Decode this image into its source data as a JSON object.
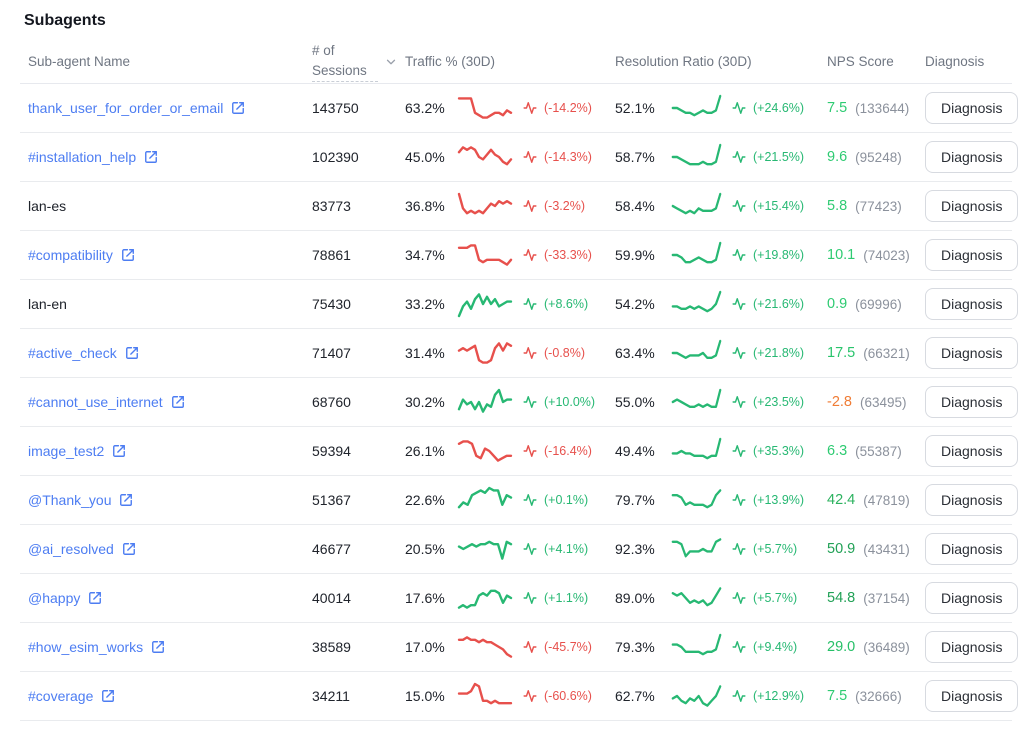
{
  "page": {
    "title": "Subagents"
  },
  "colors": {
    "red": "#e7504c",
    "green": "#27b873",
    "orange": "#f07c35",
    "link_blue": "#4d7df2"
  },
  "table": {
    "columns": [
      "Sub-agent Name",
      "# of Sessions",
      "Traffic % (30D)",
      "Resolution Ratio (30D)",
      "NPS Score",
      "Diagnosis"
    ],
    "diagnosis_label": "Diagnosis",
    "rows": [
      {
        "name": "thank_user_for_order_or_email",
        "is_link": true,
        "sessions": "143750",
        "traffic": {
          "value": "63.2%",
          "change": "(-14.2%)",
          "trend": "down",
          "spark": [
            9,
            9,
            9,
            9,
            3,
            2,
            1,
            1,
            2,
            3,
            3,
            2,
            4,
            3
          ]
        },
        "resolution": {
          "value": "52.1%",
          "change": "(+24.6%)",
          "trend": "up",
          "spark": [
            5,
            5,
            4,
            3,
            3,
            2,
            3,
            4,
            3,
            3,
            4,
            10
          ]
        },
        "nps": {
          "score": "7.5",
          "count": "(133644)",
          "color": "#2ecb72"
        }
      },
      {
        "name": "#installation_help",
        "is_link": true,
        "sessions": "102390",
        "traffic": {
          "value": "45.0%",
          "change": "(-14.3%)",
          "trend": "down",
          "spark": [
            7,
            9,
            8,
            9,
            8,
            5,
            4,
            6,
            8,
            6,
            5,
            3,
            2,
            4
          ]
        },
        "resolution": {
          "value": "58.7%",
          "change": "(+21.5%)",
          "trend": "up",
          "spark": [
            5,
            5,
            4,
            3,
            2,
            2,
            2,
            3,
            2,
            2,
            3,
            10
          ]
        },
        "nps": {
          "score": "9.6",
          "count": "(95248)",
          "color": "#2ecb72"
        }
      },
      {
        "name": "lan-es",
        "is_link": false,
        "sessions": "83773",
        "traffic": {
          "value": "36.8%",
          "change": "(-3.2%)",
          "trend": "down",
          "spark": [
            10,
            4,
            2,
            3,
            2,
            3,
            2,
            4,
            6,
            5,
            7,
            6,
            7,
            6
          ]
        },
        "resolution": {
          "value": "58.4%",
          "change": "(+15.4%)",
          "trend": "up",
          "spark": [
            5,
            4,
            3,
            2,
            3,
            2,
            4,
            3,
            3,
            3,
            4,
            10
          ]
        },
        "nps": {
          "score": "5.8",
          "count": "(77423)",
          "color": "#2ecb72"
        }
      },
      {
        "name": "#compatibility",
        "is_link": true,
        "sessions": "78861",
        "traffic": {
          "value": "34.7%",
          "change": "(-33.3%)",
          "trend": "down",
          "spark": [
            8,
            8,
            8,
            9,
            9,
            3,
            2,
            3,
            3,
            3,
            3,
            2,
            1,
            3
          ]
        },
        "resolution": {
          "value": "59.9%",
          "change": "(+19.8%)",
          "trend": "up",
          "spark": [
            5,
            5,
            4,
            2,
            2,
            3,
            4,
            3,
            2,
            2,
            3,
            10
          ]
        },
        "nps": {
          "score": "10.1",
          "count": "(74023)",
          "color": "#2ecb72"
        }
      },
      {
        "name": "lan-en",
        "is_link": false,
        "sessions": "75430",
        "traffic": {
          "value": "33.2%",
          "change": "(+8.6%)",
          "trend": "up",
          "spark": [
            0,
            4,
            6,
            3,
            7,
            9,
            5,
            8,
            5,
            7,
            4,
            5,
            6,
            6
          ]
        },
        "resolution": {
          "value": "54.2%",
          "change": "(+21.6%)",
          "trend": "up",
          "spark": [
            4,
            4,
            3,
            3,
            4,
            3,
            4,
            3,
            2,
            3,
            5,
            10
          ]
        },
        "nps": {
          "score": "0.9",
          "count": "(69996)",
          "color": "#2ecb72"
        }
      },
      {
        "name": "#active_check",
        "is_link": true,
        "sessions": "71407",
        "traffic": {
          "value": "31.4%",
          "change": "(-0.8%)",
          "trend": "down",
          "spark": [
            6,
            7,
            6,
            7,
            8,
            2,
            1,
            1,
            2,
            7,
            9,
            6,
            9,
            8
          ]
        },
        "resolution": {
          "value": "63.4%",
          "change": "(+21.8%)",
          "trend": "up",
          "spark": [
            5,
            5,
            4,
            3,
            4,
            4,
            4,
            5,
            3,
            3,
            4,
            10
          ]
        },
        "nps": {
          "score": "17.5",
          "count": "(66321)",
          "color": "#29c46c"
        }
      },
      {
        "name": "#cannot_use_internet",
        "is_link": true,
        "sessions": "68760",
        "traffic": {
          "value": "30.2%",
          "change": "(+10.0%)",
          "trend": "up",
          "spark": [
            2,
            6,
            4,
            5,
            2,
            5,
            1,
            4,
            3,
            8,
            10,
            5,
            6,
            6
          ]
        },
        "resolution": {
          "value": "55.0%",
          "change": "(+23.5%)",
          "trend": "up",
          "spark": [
            5,
            6,
            5,
            4,
            3,
            3,
            4,
            3,
            4,
            3,
            3,
            10
          ]
        },
        "nps": {
          "score": "-2.8",
          "count": "(63495)",
          "color": "#f07c35"
        }
      },
      {
        "name": "image_test2",
        "is_link": true,
        "sessions": "59394",
        "traffic": {
          "value": "26.1%",
          "change": "(-16.4%)",
          "trend": "down",
          "spark": [
            8,
            9,
            9,
            8,
            3,
            2,
            6,
            5,
            3,
            1,
            2,
            3,
            3
          ]
        },
        "resolution": {
          "value": "49.4%",
          "change": "(+35.3%)",
          "trend": "up",
          "spark": [
            4,
            4,
            5,
            4,
            4,
            3,
            3,
            3,
            2,
            3,
            3,
            10
          ]
        },
        "nps": {
          "score": "6.3",
          "count": "(55387)",
          "color": "#2ecb72"
        }
      },
      {
        "name": "@Thank_you",
        "is_link": true,
        "sessions": "51367",
        "traffic": {
          "value": "22.6%",
          "change": "(+0.1%)",
          "trend": "up",
          "spark": [
            2,
            4,
            3,
            7,
            8,
            9,
            8,
            10,
            9,
            9,
            3,
            7,
            6
          ]
        },
        "resolution": {
          "value": "79.7%",
          "change": "(+13.9%)",
          "trend": "up",
          "spark": [
            7,
            7,
            6,
            3,
            4,
            3,
            3,
            3,
            2,
            3,
            7,
            9
          ]
        },
        "nps": {
          "score": "42.4",
          "count": "(47819)",
          "color": "#2cb25f"
        }
      },
      {
        "name": "@ai_resolved",
        "is_link": true,
        "sessions": "46677",
        "traffic": {
          "value": "20.5%",
          "change": "(+4.1%)",
          "trend": "up",
          "spark": [
            6,
            5,
            6,
            7,
            6,
            7,
            7,
            8,
            7,
            7,
            1,
            8,
            7
          ]
        },
        "resolution": {
          "value": "92.3%",
          "change": "(+5.7%)",
          "trend": "up",
          "spark": [
            8,
            8,
            7,
            2,
            4,
            4,
            4,
            5,
            4,
            4,
            8,
            9
          ]
        },
        "nps": {
          "score": "50.9",
          "count": "(43431)",
          "color": "#21a156"
        }
      },
      {
        "name": "@happy",
        "is_link": true,
        "sessions": "40014",
        "traffic": {
          "value": "17.6%",
          "change": "(+1.1%)",
          "trend": "up",
          "spark": [
            1,
            2,
            1,
            2,
            2,
            6,
            7,
            6,
            8,
            8,
            7,
            3,
            6,
            5
          ]
        },
        "resolution": {
          "value": "89.0%",
          "change": "(+5.7%)",
          "trend": "up",
          "spark": [
            7,
            6,
            7,
            5,
            3,
            4,
            3,
            4,
            2,
            3,
            6,
            9
          ]
        },
        "nps": {
          "score": "54.8",
          "count": "(37154)",
          "color": "#21a156"
        }
      },
      {
        "name": "#how_esim_works",
        "is_link": true,
        "sessions": "38589",
        "traffic": {
          "value": "17.0%",
          "change": "(-45.7%)",
          "trend": "down",
          "spark": [
            8,
            8,
            9,
            8,
            8,
            7,
            8,
            7,
            7,
            6,
            5,
            4,
            2,
            1
          ]
        },
        "resolution": {
          "value": "79.3%",
          "change": "(+9.4%)",
          "trend": "up",
          "spark": [
            6,
            6,
            5,
            3,
            3,
            3,
            3,
            2,
            3,
            3,
            4,
            10
          ]
        },
        "nps": {
          "score": "29.0",
          "count": "(36489)",
          "color": "#27c068"
        }
      },
      {
        "name": "#coverage",
        "is_link": true,
        "sessions": "34211",
        "traffic": {
          "value": "15.0%",
          "change": "(-60.6%)",
          "trend": "down",
          "spark": [
            6,
            6,
            6,
            7,
            10,
            9,
            3,
            3,
            2,
            3,
            2,
            2,
            2,
            2
          ]
        },
        "resolution": {
          "value": "62.7%",
          "change": "(+12.9%)",
          "trend": "up",
          "spark": [
            4,
            5,
            3,
            2,
            4,
            3,
            5,
            2,
            1,
            3,
            5,
            9
          ]
        },
        "nps": {
          "score": "7.5",
          "count": "(32666)",
          "color": "#2ecb72"
        }
      }
    ]
  }
}
